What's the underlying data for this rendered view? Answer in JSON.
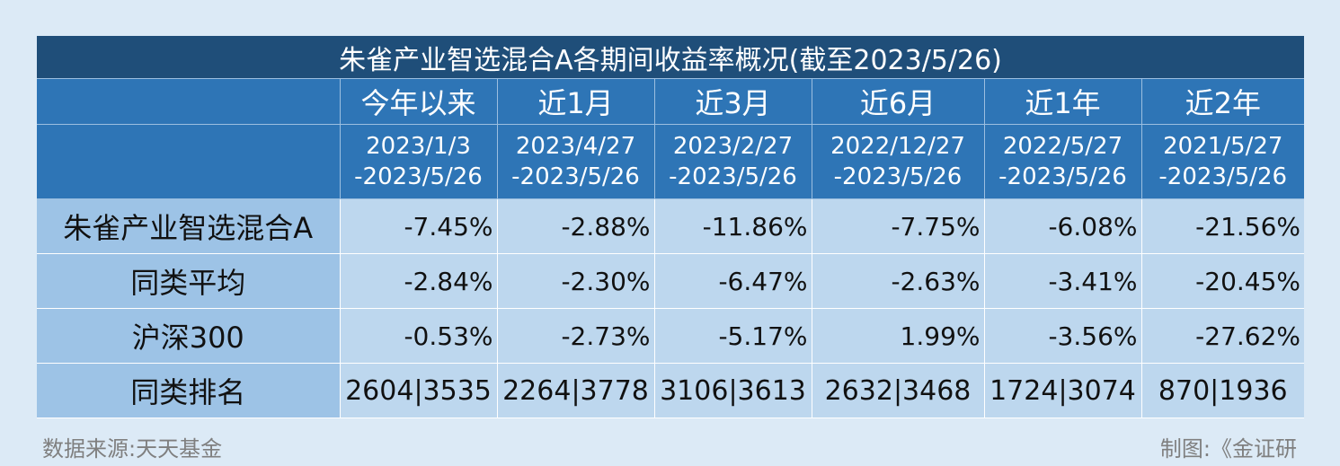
{
  "title": "朱雀产业智选混合A各期间收益率概况(截至2023/5/26)",
  "periods": [
    "今年以来",
    "近1月",
    "近3月",
    "近6月",
    "近1年",
    "近2年"
  ],
  "ranges": [
    {
      "start": "2023/1/3",
      "end": "-2023/5/26"
    },
    {
      "start": "2023/4/27",
      "end": "-2023/5/26"
    },
    {
      "start": "2023/2/27",
      "end": "-2023/5/26"
    },
    {
      "start": "2022/12/27",
      "end": "-2023/5/26"
    },
    {
      "start": "2022/5/27",
      "end": "-2023/5/26"
    },
    {
      "start": "2021/5/27",
      "end": "-2023/5/26"
    }
  ],
  "rows": [
    {
      "label": "朱雀产业智选混合A",
      "values": [
        "-7.45%",
        "-2.88%",
        "-11.86%",
        "-7.75%",
        "-6.08%",
        "-21.56%"
      ]
    },
    {
      "label": "同类平均",
      "values": [
        "-2.84%",
        "-2.30%",
        "-6.47%",
        "-2.63%",
        "-3.41%",
        "-20.45%"
      ]
    },
    {
      "label": "沪深300",
      "values": [
        "-0.53%",
        "-2.73%",
        "-5.17%",
        "1.99%",
        "-3.56%",
        "-27.62%"
      ]
    },
    {
      "label": "同类排名",
      "values": [
        "2604|3535",
        "2264|3778",
        "3106|3613",
        "2632|3468",
        "1724|3074",
        "870|1936"
      ]
    }
  ],
  "footer": {
    "source": "数据来源:天天基金",
    "credit": "制图:《金证研"
  }
}
